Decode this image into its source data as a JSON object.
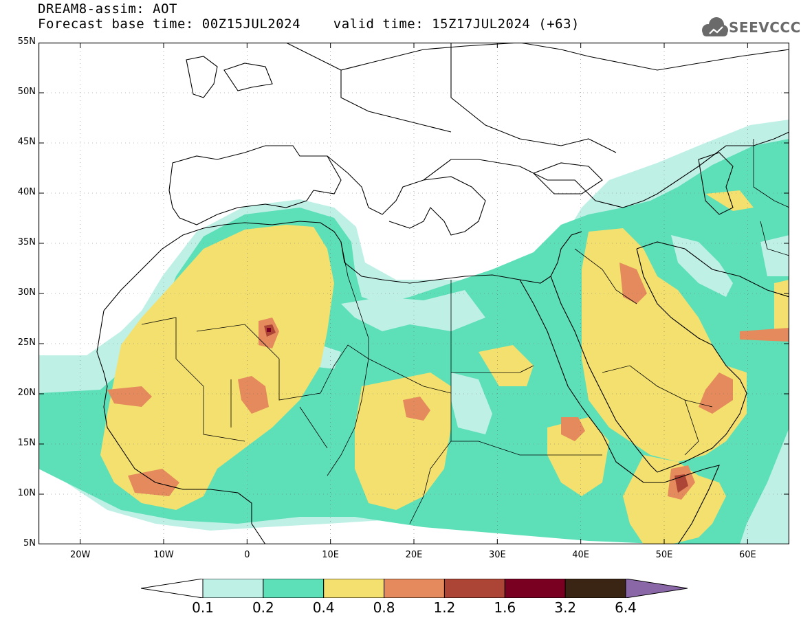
{
  "header": {
    "title_line1": "DREAM8-assim: AOT",
    "title_line2": "Forecast base time: 00Z15JUL2024    valid time: 15Z17JUL2024 (+63)",
    "logo_text": "SEEVCCC"
  },
  "map": {
    "lat_labels": [
      "55N",
      "50N",
      "45N",
      "40N",
      "35N",
      "30N",
      "25N",
      "20N",
      "15N",
      "10N",
      "5N"
    ],
    "lon_labels": [
      "20W",
      "10W",
      "0",
      "10E",
      "20E",
      "30E",
      "40E",
      "50E",
      "60E"
    ],
    "extent": {
      "lon_min": -25,
      "lon_max": 65,
      "lat_min": 5,
      "lat_max": 55
    }
  },
  "legend": {
    "labels": [
      "0.1",
      "0.2",
      "0.4",
      "0.8",
      "1.2",
      "1.6",
      "3.2",
      "6.4"
    ],
    "colors": [
      "#ffffff",
      "#bff0e6",
      "#5ddfb8",
      "#f3e06e",
      "#e48a5c",
      "#ad4536",
      "#7a0021",
      "#3a2414",
      "#8a68a8"
    ]
  },
  "colors": {
    "class1": "#bff0e6",
    "class2": "#5ddfb8",
    "class3": "#f3e06e",
    "class4": "#e48a5c",
    "class5": "#ad4536",
    "class6": "#7a0021",
    "class7": "#3a2414",
    "logo": "#6a6a6a"
  }
}
